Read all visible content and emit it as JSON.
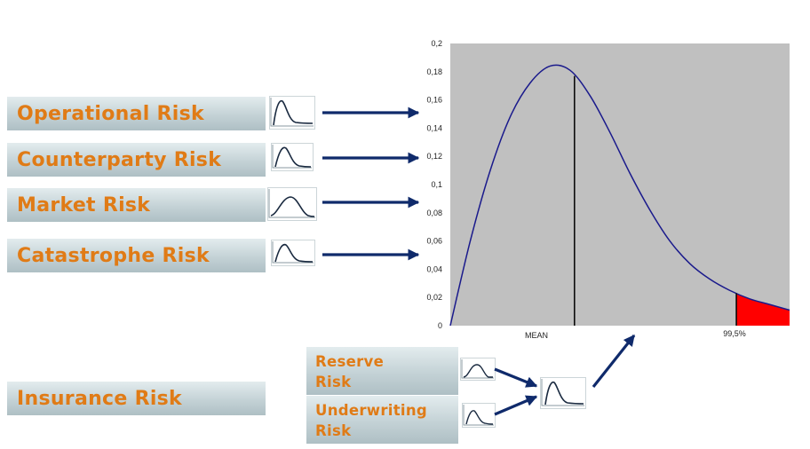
{
  "risks": [
    {
      "label": "Operational Risk"
    },
    {
      "label": "Counterparty Risk"
    },
    {
      "label": "Market Risk"
    },
    {
      "label": "Catastrophe Risk"
    },
    {
      "label": "Insurance Risk"
    }
  ],
  "sub_risks": [
    {
      "line1": "Reserve",
      "line2": "Risk"
    },
    {
      "line1": "Underwriting",
      "line2": "Risk"
    }
  ],
  "colors": {
    "label_text": "#e07b16",
    "arrow": "#0f2a6b",
    "curve": "#1a1a8c",
    "tail": "#ff0000",
    "plot_bg": "#c0c0c0"
  },
  "chart_data": {
    "type": "line",
    "ylim": [
      0,
      0.2
    ],
    "y_ticks": [
      "0",
      "0,02",
      "0,04",
      "0,06",
      "0,08",
      "0,1",
      "0,12",
      "0,14",
      "0,16",
      "0,18",
      "0,2"
    ],
    "x_labels": {
      "mean": "MEAN",
      "quantile": "99,5%"
    },
    "series": [
      {
        "values": [
          0,
          0.06,
          0.11,
          0.148,
          0.172,
          0.184,
          0.181,
          0.163,
          0.137,
          0.108,
          0.082,
          0.06,
          0.044,
          0.033,
          0.025,
          0.019,
          0.015,
          0.011
        ]
      }
    ],
    "mean_value": 0.177,
    "quantile_value": 0.023,
    "tail_shaded": true,
    "grid": false
  }
}
